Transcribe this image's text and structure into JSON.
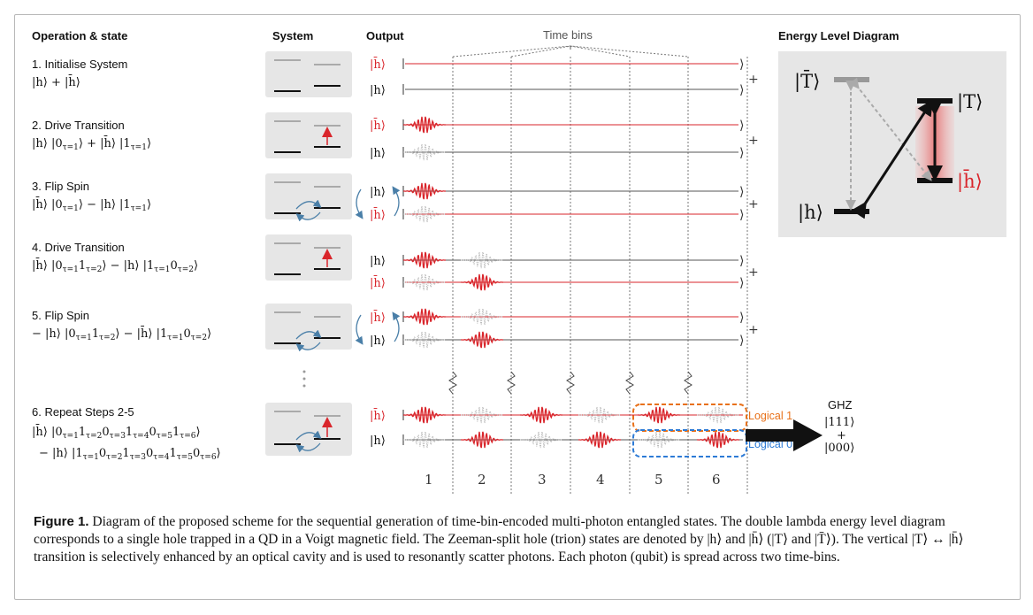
{
  "headers": {
    "operation": "Operation & state",
    "system": "System",
    "output": "Output",
    "time_bins": "Time bins",
    "energy": "Energy Level Diagram"
  },
  "steps": [
    {
      "title": "1. Initialise System"
    },
    {
      "title": "2. Drive Transition"
    },
    {
      "title": "3. Flip Spin"
    },
    {
      "title": "4. Drive Transition"
    },
    {
      "title": "5. Flip Spin"
    },
    {
      "title": "6. Repeat Steps 2-5"
    }
  ],
  "bin_numbers": [
    "1",
    "2",
    "3",
    "4",
    "5",
    "6"
  ],
  "logical": {
    "one": "Logical 1",
    "zero": "Logical 0"
  },
  "ghz": {
    "label": "GHZ",
    "ket1": "|111⟩",
    "plus": "+",
    "ket0": "|000⟩"
  },
  "energy_levels": {
    "Tbar": "|T̄⟩",
    "T": "|T⟩",
    "h": "|h⟩",
    "hbar": "|h̄⟩"
  },
  "caption": {
    "label": "Figure 1.",
    "text": " Diagram of the proposed scheme for the sequential generation of time-bin-encoded multi-photon entangled states. The double lambda energy level diagram corresponds to a single hole trapped in a QD in a Voigt magnetic field. The Zeeman-split hole (trion) states are denoted by |h⟩ and |h̄⟩ (|T⟩ and |T̄⟩). The vertical |T⟩ ↔ |h̄⟩ transition is selectively enhanced by an optical cavity and is used to resonantly scatter photons. Each photon (qubit) is spread across two time-bins."
  },
  "colors": {
    "red": "#d9252b",
    "grey_line": "#555555",
    "panel": "#e6e6e6",
    "orange": "#e8711a",
    "blue": "#2d7bd6"
  }
}
